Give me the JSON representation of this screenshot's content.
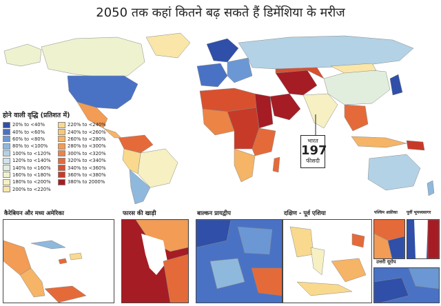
{
  "title": "2050 तक कहां कितने बढ़ सकते हैं डिमेंशिया के मरीज",
  "legend": {
    "title": "होने वाली वृद्धि (प्रतिशत में)",
    "items": [
      {
        "label": "20% to <40%",
        "color": "#2f4fa8"
      },
      {
        "label": "40% to <60%",
        "color": "#4a72c4"
      },
      {
        "label": "60% to <80%",
        "color": "#6b98d4"
      },
      {
        "label": "80% to <100%",
        "color": "#8fb8dd"
      },
      {
        "label": "100% to <120%",
        "color": "#b3d2e6"
      },
      {
        "label": "120% to <140%",
        "color": "#cfe3ec"
      },
      {
        "label": "140% to <160%",
        "color": "#e2eedd"
      },
      {
        "label": "160% to <180%",
        "color": "#eef2cf"
      },
      {
        "label": "180% to <200%",
        "color": "#f6f0c2"
      },
      {
        "label": "200% to <220%",
        "color": "#f9e6a8"
      },
      {
        "label": "220% to <240%",
        "color": "#f9d98e"
      },
      {
        "label": "240% to <260%",
        "color": "#f8c878"
      },
      {
        "label": "260% to <280%",
        "color": "#f5b466"
      },
      {
        "label": "280% to <300%",
        "color": "#f29c55"
      },
      {
        "label": "300% to <320%",
        "color": "#ec8446"
      },
      {
        "label": "320% to <340%",
        "color": "#e56a3a"
      },
      {
        "label": "340% to <360%",
        "color": "#d9502f"
      },
      {
        "label": "360% to <380%",
        "color": "#c83a28"
      },
      {
        "label": "380% to 2000%",
        "color": "#a61c24"
      }
    ]
  },
  "callout": {
    "country": "भारत",
    "value": "197",
    "unit": "फीसदी"
  },
  "insets": {
    "caribbean": "कैरेबियन और मध्य अमेरिका",
    "persian_gulf": "फारस की खाड़ी",
    "balkans": "बाल्कन प्रायद्वीप",
    "southeast_asia": "दक्षिण - पूर्व एशिया",
    "west_africa": "पश्चिम अफ्रीका",
    "east_med": "पूर्वी भूमध्यसागर",
    "north_europe": "उत्तरी यूरोप"
  }
}
